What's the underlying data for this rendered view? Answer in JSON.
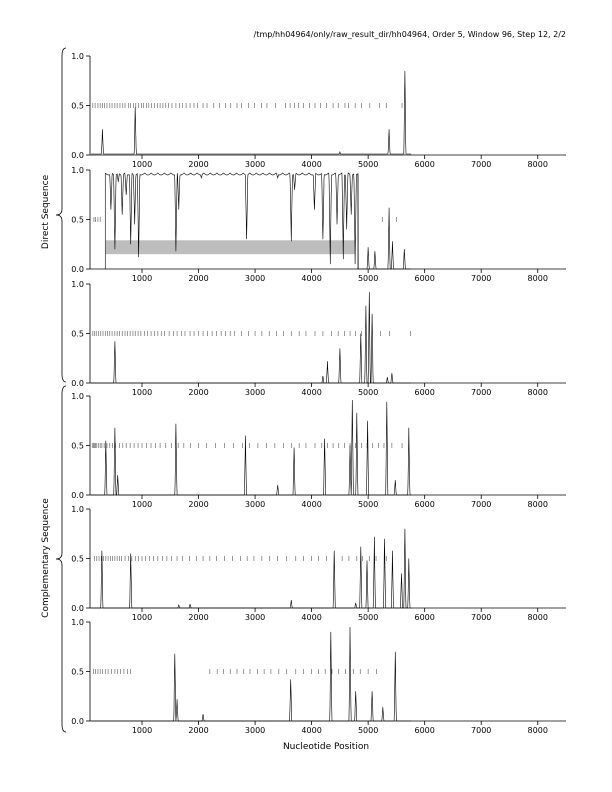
{
  "header": {
    "title": "/tmp/hh04964/only/raw_result_dir/hh04964, Order 5, Window 96, Step 12, 2/2"
  },
  "groups": {
    "direct": "Direct Sequence",
    "complementary": "Complementary Sequence"
  },
  "xlabel": "Nucleotide Position",
  "chart_data": {
    "type": "line",
    "xlim": [
      80,
      8500
    ],
    "ylim": [
      0,
      1
    ],
    "xticks": [
      1000,
      2000,
      3000,
      4000,
      5000,
      6000,
      7000,
      8000
    ],
    "yticks": [
      0.0,
      0.5,
      1.0
    ],
    "xticklabels": [
      "1000",
      "2000",
      "3000",
      "4000",
      "5000",
      "6000",
      "7000",
      "8000"
    ],
    "yticklabels": [
      "0.0",
      "0.5",
      "1.0"
    ],
    "grid": false,
    "panels": [
      {
        "group": "direct",
        "baseline": 0.01,
        "peaks": [
          [
            300,
            0.26
          ],
          [
            880,
            0.48
          ],
          [
            4500,
            0.03
          ],
          [
            5370,
            0.26
          ],
          [
            5650,
            0.85
          ]
        ],
        "ticks_y": 0.5,
        "tick_positions": [
          130,
          170,
          220,
          260,
          300,
          340,
          380,
          430,
          470,
          520,
          560,
          610,
          660,
          700,
          760,
          800,
          850,
          890,
          940,
          990,
          1030,
          1080,
          1120,
          1170,
          1220,
          1270,
          1320,
          1370,
          1420,
          1470,
          1530,
          1600,
          1660,
          1720,
          1780,
          1850,
          1920,
          1980,
          2080,
          2150,
          2270,
          2370,
          2480,
          2570,
          2680,
          2760,
          2880,
          2990,
          3110,
          3210,
          3360,
          3540,
          3620,
          3700,
          3770,
          3860,
          3960,
          4060,
          4160,
          4260,
          4380,
          4470,
          4590,
          4650,
          4770,
          4880,
          5030,
          5200,
          5320,
          5600
        ]
      },
      {
        "group": "direct",
        "baseline": 0.0,
        "dense_range": [
          350,
          4820
        ],
        "dense_dips": [
          [
            450,
            0.6
          ],
          [
            520,
            0.2
          ],
          [
            580,
            0.88
          ],
          [
            650,
            0.55
          ],
          [
            720,
            0.75
          ],
          [
            800,
            0.25
          ],
          [
            870,
            0.45
          ],
          [
            940,
            0.12
          ],
          [
            1600,
            0.18
          ],
          [
            1650,
            0.6
          ],
          [
            2050,
            0.92
          ],
          [
            2850,
            0.3
          ],
          [
            3400,
            0.92
          ],
          [
            3640,
            0.28
          ],
          [
            3700,
            0.8
          ],
          [
            4050,
            0.6
          ],
          [
            4200,
            0.3
          ],
          [
            4330,
            0.05
          ],
          [
            4450,
            0.45
          ],
          [
            4560,
            0.1
          ],
          [
            4620,
            0.4
          ],
          [
            4700,
            0.55
          ],
          [
            4770,
            0.05
          ]
        ],
        "peaks": [
          [
            5000,
            0.22
          ],
          [
            5120,
            0.18
          ],
          [
            5370,
            0.62
          ],
          [
            5430,
            0.28
          ],
          [
            5640,
            0.2
          ]
        ],
        "band": [
          360,
          4760,
          0.15,
          0.29
        ],
        "ticks_y": 0.5,
        "tick_positions": [
          150,
          180,
          220,
          260,
          5250,
          5500
        ]
      },
      {
        "group": "direct",
        "baseline": 0.0,
        "peaks": [
          [
            520,
            0.42
          ],
          [
            4200,
            0.07
          ],
          [
            4280,
            0.22
          ],
          [
            4500,
            0.35
          ],
          [
            4870,
            0.5
          ],
          [
            4960,
            0.78
          ],
          [
            5020,
            0.92
          ],
          [
            5070,
            0.7
          ],
          [
            5340,
            0.06
          ],
          [
            5420,
            0.1
          ]
        ],
        "ticks_y": 0.5,
        "tick_positions": [
          130,
          160,
          190,
          230,
          270,
          310,
          350,
          390,
          430,
          470,
          520,
          560,
          600,
          650,
          700,
          740,
          790,
          840,
          880,
          930,
          980,
          1040,
          1100,
          1160,
          1220,
          1280,
          1340,
          1400,
          1480,
          1560,
          1620,
          1700,
          1760,
          1850,
          1920,
          2000,
          2080,
          2160,
          2240,
          2320,
          2400,
          2480,
          2560,
          2640,
          2760,
          2880,
          3000,
          3120,
          3250,
          3380,
          3500,
          3640,
          3780,
          3900,
          4060,
          4200,
          4350,
          4470,
          4580,
          4680,
          4780,
          4880,
          5220,
          5380,
          5750
        ]
      },
      {
        "group": "complementary",
        "baseline": 0.0,
        "peaks": [
          [
            360,
            0.55
          ],
          [
            520,
            0.68
          ],
          [
            570,
            0.2
          ],
          [
            1600,
            0.72
          ],
          [
            2830,
            0.6
          ],
          [
            3400,
            0.1
          ],
          [
            3690,
            0.48
          ],
          [
            4230,
            0.57
          ],
          [
            4680,
            0.5
          ],
          [
            4720,
            0.96
          ],
          [
            4800,
            0.83
          ],
          [
            4990,
            0.75
          ],
          [
            5330,
            0.94
          ],
          [
            5480,
            0.15
          ],
          [
            5720,
            0.68
          ]
        ],
        "ticks_y": 0.5,
        "tick_positions": [
          120,
          140,
          160,
          180,
          200,
          230,
          260,
          290,
          330,
          380,
          430,
          480,
          530,
          600,
          660,
          720,
          790,
          860,
          930,
          1000,
          1080,
          1160,
          1240,
          1320,
          1420,
          1520,
          1640,
          1740,
          1860,
          2000,
          2140,
          2300,
          2460,
          2620,
          2780,
          2900,
          3050,
          3200,
          3350,
          3500,
          3640,
          3780,
          3900,
          4060,
          4180,
          4280,
          4380,
          4480,
          4580,
          4680,
          4780,
          4880,
          4980,
          5080,
          5180,
          5280,
          5420,
          5600
        ]
      },
      {
        "group": "complementary",
        "baseline": 0.0,
        "peaks": [
          [
            290,
            0.58
          ],
          [
            800,
            0.55
          ],
          [
            1650,
            0.03
          ],
          [
            1850,
            0.04
          ],
          [
            3640,
            0.08
          ],
          [
            4400,
            0.58
          ],
          [
            4780,
            0.05
          ],
          [
            4870,
            0.62
          ],
          [
            4980,
            0.48
          ],
          [
            5110,
            0.72
          ],
          [
            5290,
            0.7
          ],
          [
            5430,
            0.58
          ],
          [
            5590,
            0.35
          ],
          [
            5650,
            0.8
          ],
          [
            5720,
            0.5
          ]
        ],
        "ticks_y": 0.5,
        "tick_positions": [
          160,
          200,
          240,
          280,
          320,
          360,
          400,
          440,
          480,
          520,
          560,
          600,
          640,
          700,
          760,
          820,
          880,
          940,
          1000,
          1060,
          1130,
          1200,
          1280,
          1360,
          1440,
          1520,
          1620,
          1720,
          1840,
          1960,
          2080,
          2200,
          2320,
          2460,
          2600,
          2740,
          2860,
          2980,
          3120,
          3260,
          3400,
          3560,
          3720,
          3860,
          4000,
          4120,
          4260,
          4400,
          4540,
          4660,
          4800,
          4900,
          5020,
          5140,
          5320
        ]
      },
      {
        "group": "complementary",
        "baseline": 0.0,
        "peaks": [
          [
            1580,
            0.68
          ],
          [
            1620,
            0.22
          ],
          [
            2080,
            0.07
          ],
          [
            3630,
            0.42
          ],
          [
            4340,
            0.9
          ],
          [
            4680,
            0.95
          ],
          [
            4780,
            0.3
          ],
          [
            5070,
            0.3
          ],
          [
            5260,
            0.14
          ],
          [
            5480,
            0.7
          ]
        ],
        "ticks_y": 0.5,
        "tick_positions": [
          140,
          180,
          220,
          260,
          300,
          350,
          400,
          460,
          520,
          570,
          620,
          680,
          740,
          800,
          2200,
          2330,
          2440,
          2560,
          2680,
          2800,
          2910,
          3040,
          3160,
          3280,
          3420,
          3560,
          3720,
          3860,
          4000,
          4120,
          4240,
          4360,
          4480,
          4600,
          4740,
          4860,
          5000,
          5150
        ]
      }
    ]
  }
}
